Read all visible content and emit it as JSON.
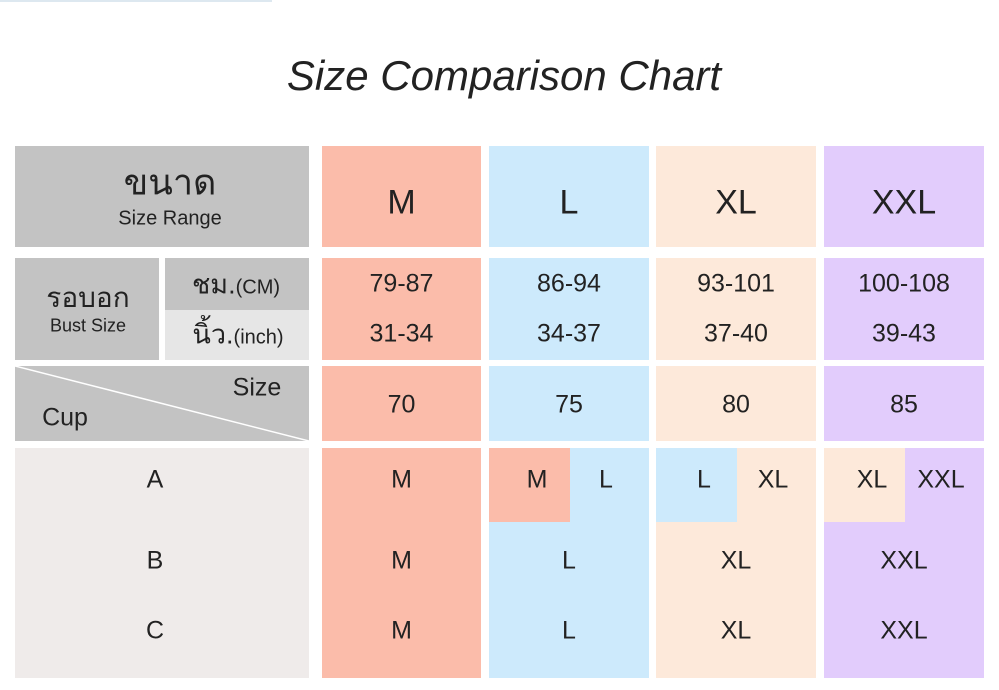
{
  "title": "Size Comparison Chart",
  "header": {
    "label_thai": "ขนาด",
    "label_en": "Size Range",
    "sizes": [
      "M",
      "L",
      "XL",
      "XXL"
    ]
  },
  "bust": {
    "label_thai": "รอบอก",
    "label_en": "Bust Size",
    "cm_thai": "ชม.",
    "cm_en": "(CM)",
    "inch_thai": "นิ้ว.",
    "inch_en": "(inch)",
    "cm": [
      "79-87",
      "86-94",
      "93-101",
      "100-108"
    ],
    "inch": [
      "31-34",
      "34-37",
      "37-40",
      "39-43"
    ]
  },
  "band": {
    "size_label": "Size",
    "cup_label": "Cup",
    "values": [
      70,
      75,
      80,
      85
    ]
  },
  "cups": [
    {
      "cup": "A",
      "sizes": [
        [
          "M"
        ],
        [
          "M",
          "L"
        ],
        [
          "L",
          "XL"
        ],
        [
          "XL",
          "XXL"
        ]
      ]
    },
    {
      "cup": "B",
      "sizes": [
        [
          "M"
        ],
        [
          "L"
        ],
        [
          "XL"
        ],
        [
          "XXL"
        ]
      ]
    },
    {
      "cup": "C",
      "sizes": [
        [
          "M"
        ],
        [
          "L"
        ],
        [
          "XL"
        ],
        [
          "XXL"
        ]
      ]
    }
  ]
}
